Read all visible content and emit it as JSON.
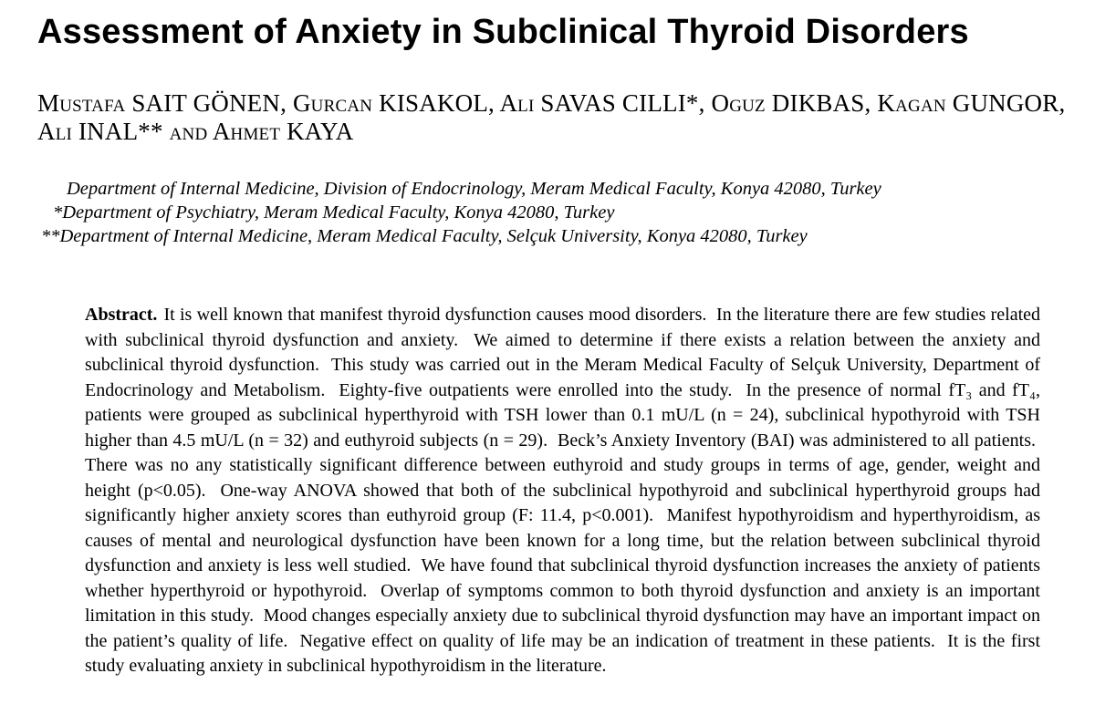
{
  "article": {
    "title": "Assessment of Anxiety in Subclinical Thyroid Disorders",
    "authors": {
      "line1": "Mustafa SAIT GÖNEN, Gurcan KISAKOL, Ali SAVAS CILLI*, Oguz DIKBAS, Kagan GUNGOR,",
      "line2": "Ali INAL** and Ahmet KAYA"
    },
    "affiliations": [
      {
        "marker": "",
        "text": "Department of Internal Medicine, Division of Endocrinology, Meram Medical Faculty, Konya 42080, Turkey"
      },
      {
        "marker": "*",
        "text": "Department of Psychiatry, Meram Medical Faculty, Konya 42080, Turkey"
      },
      {
        "marker": "**",
        "text": "Department of Internal Medicine, Meram Medical Faculty, Selçuk University, Konya 42080, Turkey"
      }
    ],
    "abstract": {
      "label": "Abstract.",
      "text": "It is well known that manifest thyroid dysfunction causes mood disorders.  In the literature there are few studies related with subclinical thyroid dysfunction and anxiety.  We aimed to determine if there exists a relation between the anxiety and subclinical thyroid dysfunction.  This study was carried out in the Meram Medical Faculty of Selçuk University, Department of Endocrinology and Metabolism.  Eighty-five outpatients were enrolled into the study.  In the presence of normal fT₃ and fT₄, patients were grouped as subclinical hyperthyroid with TSH lower than 0.1 mU/L (n = 24), subclinical hypothyroid with TSH higher than 4.5 mU/L (n = 32) and euthyroid subjects (n = 29).  Beck’s Anxiety Inventory (BAI) was administered to all patients.  There was no any statistically significant difference between euthyroid and study groups in terms of age, gender, weight and height (p<0.05).  One-way ANOVA showed that both of the subclinical hypothyroid and subclinical hyperthyroid groups had significantly higher anxiety scores than euthyroid group (F: 11.4, p<0.001).  Manifest hypothyroidism and hyperthyroidism, as causes of mental and neurological dysfunction have been known for a long time, but the relation between subclinical thyroid dysfunction and anxiety is less well studied.  We have found that subclinical thyroid dysfunction increases the anxiety of patients whether hyperthyroid or hypothyroid.  Overlap of symptoms common to both thyroid dysfunction and anxiety is an important limitation in this study.  Mood changes especially anxiety due to subclinical thyroid dysfunction may have an important impact on the patient’s quality of life.  Negative effect on quality of life may be an indication of treatment in these patients.  It is the first study evaluating anxiety in subclinical hypothyroidism in the literature."
    },
    "colors": {
      "text": "#000000",
      "background": "#ffffff"
    }
  }
}
